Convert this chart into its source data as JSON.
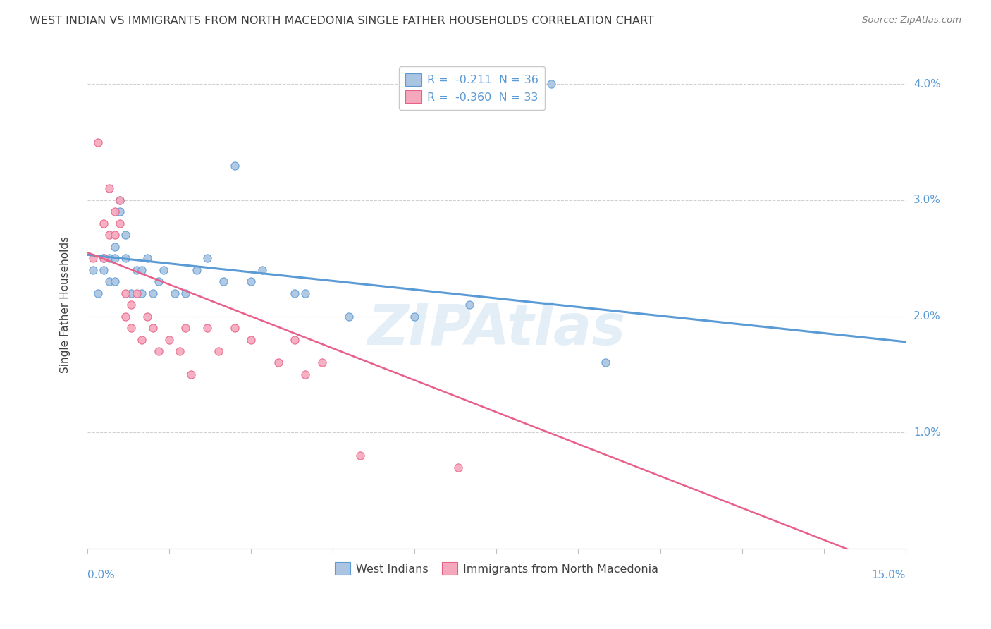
{
  "title": "WEST INDIAN VS IMMIGRANTS FROM NORTH MACEDONIA SINGLE FATHER HOUSEHOLDS CORRELATION CHART",
  "source": "Source: ZipAtlas.com",
  "ylabel": "Single Father Households",
  "legend_blue_label": "West Indians",
  "legend_pink_label": "Immigrants from North Macedonia",
  "legend_blue_r": "R =  -0.211",
  "legend_blue_n": "N = 36",
  "legend_pink_r": "R =  -0.360",
  "legend_pink_n": "N = 33",
  "blue_color": "#aac4e2",
  "pink_color": "#f5a8bc",
  "blue_edge_color": "#5b9bd5",
  "pink_edge_color": "#e8608a",
  "blue_line_color": "#5b9bd5",
  "pink_line_color": "#e8608a",
  "axis_label_color": "#5b9bd5",
  "title_color": "#404040",
  "source_color": "#808080",
  "watermark_text": "ZIPAtlas",
  "watermark_color": "#c8dff0",
  "xmin": 0.0,
  "xmax": 0.15,
  "ymin": 0.0,
  "ymax": 0.042,
  "blue_line_start_y": 0.0253,
  "blue_line_end_y": 0.0178,
  "pink_line_start_y": 0.0255,
  "pink_line_end_y": -0.002,
  "blue_scatter_x": [
    0.001,
    0.002,
    0.003,
    0.003,
    0.004,
    0.004,
    0.005,
    0.005,
    0.005,
    0.006,
    0.006,
    0.007,
    0.007,
    0.008,
    0.009,
    0.01,
    0.01,
    0.011,
    0.012,
    0.013,
    0.014,
    0.016,
    0.018,
    0.02,
    0.022,
    0.025,
    0.027,
    0.03,
    0.032,
    0.038,
    0.04,
    0.048,
    0.06,
    0.07,
    0.085,
    0.095
  ],
  "blue_scatter_y": [
    0.024,
    0.022,
    0.025,
    0.024,
    0.025,
    0.023,
    0.026,
    0.025,
    0.023,
    0.03,
    0.029,
    0.027,
    0.025,
    0.022,
    0.024,
    0.024,
    0.022,
    0.025,
    0.022,
    0.023,
    0.024,
    0.022,
    0.022,
    0.024,
    0.025,
    0.023,
    0.033,
    0.023,
    0.024,
    0.022,
    0.022,
    0.02,
    0.02,
    0.021,
    0.04,
    0.016
  ],
  "pink_scatter_x": [
    0.001,
    0.002,
    0.003,
    0.003,
    0.004,
    0.004,
    0.005,
    0.005,
    0.006,
    0.006,
    0.007,
    0.007,
    0.008,
    0.008,
    0.009,
    0.01,
    0.011,
    0.012,
    0.013,
    0.015,
    0.017,
    0.018,
    0.019,
    0.022,
    0.024,
    0.027,
    0.03,
    0.035,
    0.038,
    0.04,
    0.043,
    0.05,
    0.068
  ],
  "pink_scatter_y": [
    0.025,
    0.035,
    0.028,
    0.025,
    0.031,
    0.027,
    0.029,
    0.027,
    0.03,
    0.028,
    0.022,
    0.02,
    0.021,
    0.019,
    0.022,
    0.018,
    0.02,
    0.019,
    0.017,
    0.018,
    0.017,
    0.019,
    0.015,
    0.019,
    0.017,
    0.019,
    0.018,
    0.016,
    0.018,
    0.015,
    0.016,
    0.008,
    0.007
  ]
}
